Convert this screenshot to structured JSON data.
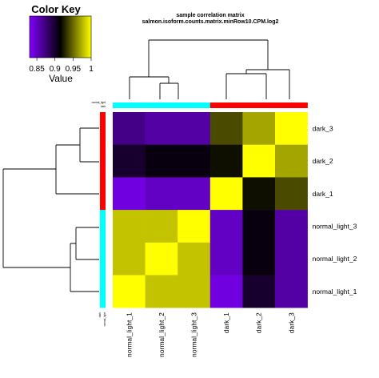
{
  "chart_data": {
    "type": "heatmap",
    "title": "sample correlation matrix",
    "subtitle": "salmon.isoform.counts.matrix.minRow10.CPM.log2",
    "rows": [
      "dark_3",
      "dark_2",
      "dark_1",
      "normal_light_3",
      "normal_light_2",
      "normal_light_1"
    ],
    "columns": [
      "normal_light_1",
      "normal_light_2",
      "normal_light_3",
      "dark_1",
      "dark_2",
      "dark_3"
    ],
    "values": [
      [
        0.87,
        0.86,
        0.86,
        0.94,
        0.97,
        1.0
      ],
      [
        0.9,
        0.91,
        0.91,
        0.92,
        1.0,
        0.97
      ],
      [
        0.84,
        0.85,
        0.85,
        1.0,
        0.92,
        0.94
      ],
      [
        0.98,
        0.98,
        1.0,
        0.85,
        0.91,
        0.86
      ],
      [
        0.98,
        1.0,
        0.98,
        0.85,
        0.91,
        0.86
      ],
      [
        1.0,
        0.98,
        0.98,
        0.84,
        0.9,
        0.86
      ]
    ],
    "color_scale": {
      "min": 0.83,
      "max": 1.0,
      "colors": [
        "#8000ff",
        "#000000",
        "#ffff00"
      ]
    },
    "row_groups": [
      "dark",
      "dark",
      "dark",
      "normal_light",
      "normal_light",
      "normal_light"
    ],
    "column_groups": [
      "normal_light",
      "normal_light",
      "normal_light",
      "dark",
      "dark",
      "dark"
    ],
    "group_colors": {
      "dark": "#ff0000",
      "normal_light": "#00ffff"
    },
    "group_legend": [
      "normal_light",
      "dark"
    ],
    "color_key": {
      "title": "Color Key",
      "ticks": [
        "0.85",
        "0.9",
        "0.95",
        "1"
      ],
      "tick_values": [
        0.85,
        0.9,
        0.95,
        1.0
      ],
      "label": "Value"
    }
  }
}
